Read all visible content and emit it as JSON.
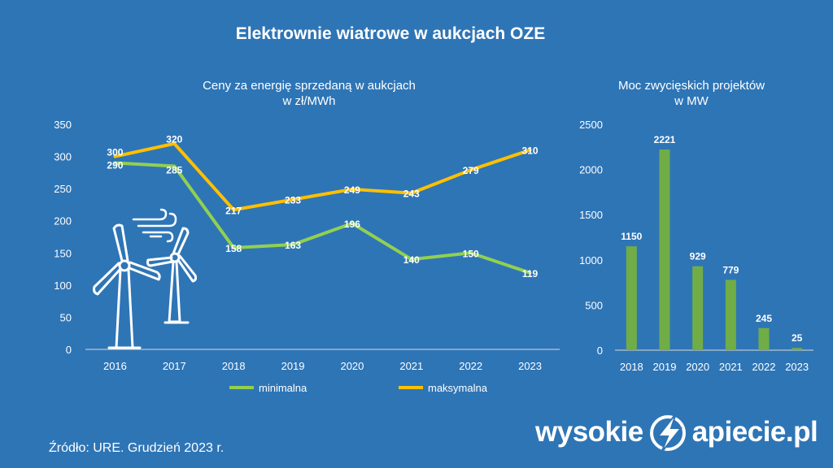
{
  "title": "Elektrownie wiatrowe w aukcjach OZE",
  "source": "Źródło: URE. Grudzień 2023 r.",
  "brand": {
    "left": "wysokie",
    "right": "apiecie.pl"
  },
  "chart_data": [
    {
      "type": "line",
      "title": "Ceny za energię sprzedaną w aukcjach",
      "subtitle": "w zł/MWh",
      "categories": [
        "2016",
        "2017",
        "2018",
        "2019",
        "2020",
        "2021",
        "2022",
        "2023"
      ],
      "ylim": [
        0,
        350
      ],
      "yticks": [
        0,
        50,
        100,
        150,
        200,
        250,
        300,
        350
      ],
      "grid": false,
      "legend": "bottom",
      "series": [
        {
          "name": "minimalna",
          "color": "#92d050",
          "values": [
            290,
            285,
            158,
            163,
            196,
            140,
            150,
            119
          ]
        },
        {
          "name": "maksymalna",
          "color": "#ffc000",
          "values": [
            300,
            320,
            217,
            233,
            249,
            243,
            279,
            310
          ]
        }
      ]
    },
    {
      "type": "bar",
      "title": "Moc zwycięskich projektów",
      "subtitle": "w MW",
      "categories": [
        "2018",
        "2019",
        "2020",
        "2021",
        "2022",
        "2023"
      ],
      "values": [
        1150,
        2221,
        929,
        779,
        245,
        25
      ],
      "ylim": [
        0,
        2500
      ],
      "yticks": [
        0,
        500,
        1000,
        1500,
        2000,
        2500
      ],
      "color": "#70ad47",
      "grid": false
    }
  ],
  "icons": [
    "wind-turbine-icon",
    "wind-gust-icon",
    "lightning-bolt-icon"
  ]
}
